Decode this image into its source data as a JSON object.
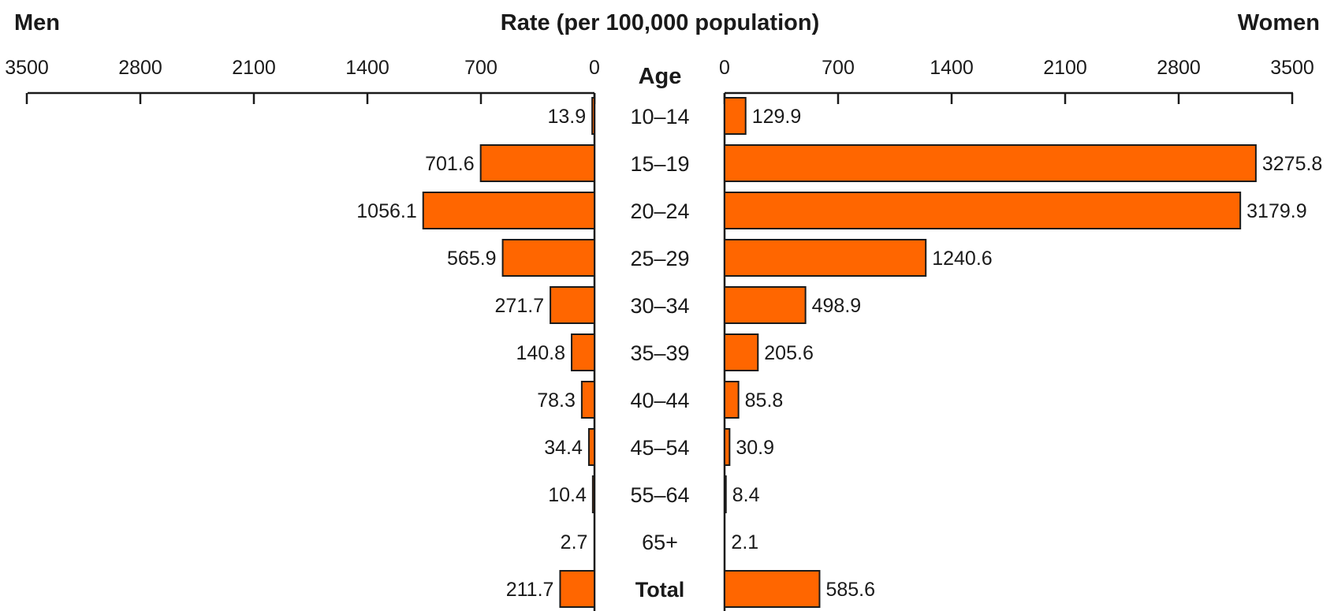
{
  "chart_data": {
    "type": "bar",
    "orientation": "horizontal-diverging",
    "title": "Rate (per 100,000 population)",
    "center_label": "Age",
    "left_label": "Men",
    "right_label": "Women",
    "categories": [
      "10–14",
      "15–19",
      "20–24",
      "25–29",
      "30–34",
      "35–39",
      "40–44",
      "45–54",
      "55–64",
      "65+",
      "Total"
    ],
    "bold_categories": [
      "Total"
    ],
    "series": [
      {
        "name": "Men",
        "values": [
          13.9,
          701.6,
          1056.1,
          565.9,
          271.7,
          140.8,
          78.3,
          34.4,
          10.4,
          2.7,
          211.7
        ],
        "labels": [
          "13.9",
          "701.6",
          "1056.1",
          "565.9",
          "271.7",
          "140.8",
          "78.3",
          "34.4",
          "10.4",
          "2.7",
          "211.7"
        ]
      },
      {
        "name": "Women",
        "values": [
          129.9,
          3275.8,
          3179.9,
          1240.6,
          498.9,
          205.6,
          85.8,
          30.9,
          8.4,
          2.1,
          585.6
        ],
        "labels": [
          "129.9",
          "3275.8",
          "3179.9",
          "1240.6",
          "498.9",
          "205.6",
          "85.8",
          "30.9",
          "8.4",
          "2.1",
          "585.6"
        ]
      }
    ],
    "xlim": [
      0,
      3500
    ],
    "left_ticks": [
      "3500",
      "2800",
      "2100",
      "1400",
      "700",
      "0"
    ],
    "right_ticks": [
      "0",
      "700",
      "1400",
      "2100",
      "2800",
      "3500"
    ],
    "bar_color": "#ff6600",
    "grid": false
  }
}
